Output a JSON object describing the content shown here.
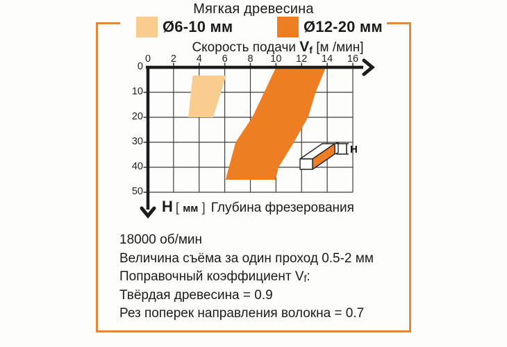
{
  "title": "Мягкая древесина",
  "legend": {
    "items": [
      {
        "label": "Ø6-10 мм",
        "color": "#f9cd90"
      },
      {
        "label": "Ø12-20 мм",
        "color": "#ee7e24"
      }
    ]
  },
  "xaxis": {
    "prefix": "Скорость подачи ",
    "v": "V",
    "f": "f",
    "units": " [м /мин]"
  },
  "yaxis": {
    "h": "H",
    "open": "[",
    "mm": "мм",
    "close": "]",
    "text": "Глубина фрезерования"
  },
  "icon": {
    "h_label": "H"
  },
  "notes": [
    "18000 об/мин",
    "Величина съёма за один проход 0.5-2 мм",
    "Поправочный коэффициент Vf:",
    "Твёрдая древесина = 0.9",
    "Рез поперек направления волокна = 0.7"
  ],
  "colors": {
    "frame": "#e0883c",
    "light_orange": "#f9cd90",
    "dark_orange": "#ee7e24",
    "axis": "#1c1c1c",
    "grid": "#3d3d3d"
  },
  "chart_data": {
    "type": "area",
    "title": "Мягкая древесина",
    "xlabel": "Скорость подачи Vf [м/мин]",
    "ylabel": "H [мм] Глубина фрезерования",
    "xlim": [
      0,
      16
    ],
    "ylim": [
      0,
      50
    ],
    "x_ticks": [
      0,
      2,
      4,
      6,
      8,
      10,
      12,
      14,
      16
    ],
    "y_ticks": [
      0,
      10,
      20,
      30,
      40,
      50
    ],
    "y_axis_direction": "down",
    "grid": true,
    "legend_position": "top",
    "series": [
      {
        "name": "Ø6-10 мм",
        "color": "#f9cd90",
        "polygon": [
          [
            3.5,
            3.3
          ],
          [
            6.1,
            3.3
          ],
          [
            5.1,
            20
          ],
          [
            3.15,
            20
          ]
        ]
      },
      {
        "name": "Ø12-20 мм",
        "color": "#ee7e24",
        "polygon": [
          [
            10,
            0
          ],
          [
            13.9,
            0
          ],
          [
            13.1,
            10
          ],
          [
            12.5,
            20
          ],
          [
            11.4,
            30
          ],
          [
            10.2,
            40
          ],
          [
            9.97,
            45
          ],
          [
            6.06,
            45
          ],
          [
            6.85,
            30
          ],
          [
            8.15,
            20
          ]
        ]
      }
    ]
  }
}
